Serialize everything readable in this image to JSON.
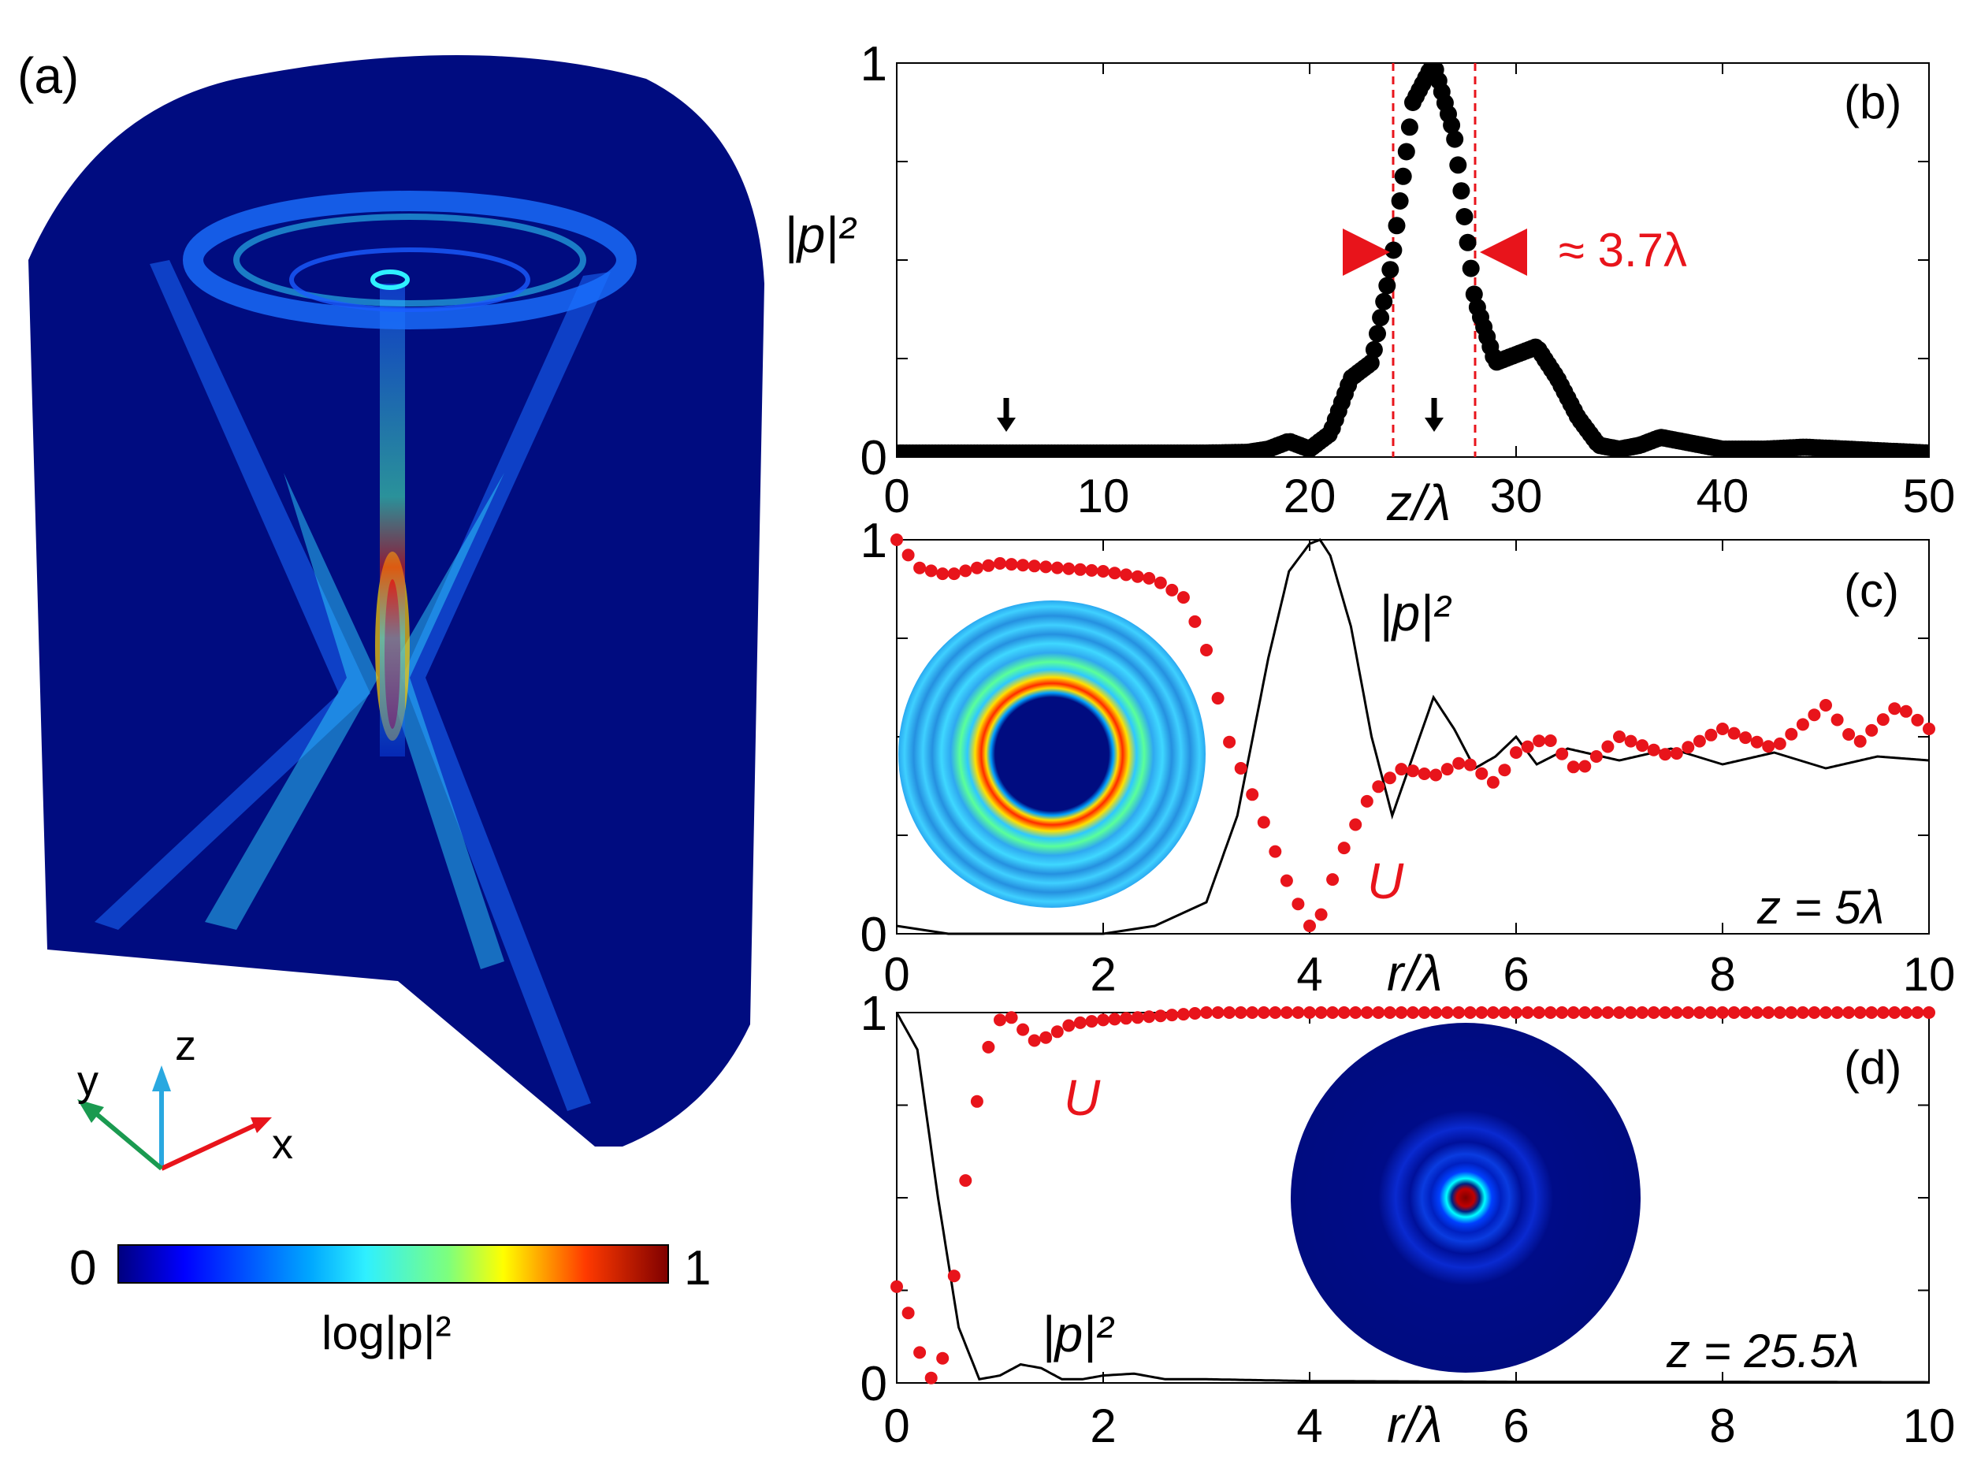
{
  "colors": {
    "red": "#e8141b",
    "black": "#000000",
    "deep_blue": "#000c80",
    "mid_blue": "#1a5cff",
    "cyan": "#22d4ff"
  },
  "panel_a": {
    "label": "(a)",
    "axis_x": "x",
    "axis_y": "y",
    "axis_z": "z",
    "colorbar": {
      "min_label": "0",
      "max_label": "1",
      "caption": "log|p|²"
    }
  },
  "chart_data": [
    {
      "type": "line",
      "panel": "(b)",
      "xlabel": "z/λ",
      "ylabel": "|p|²",
      "xlim": [
        0,
        50
      ],
      "ylim": [
        0,
        1
      ],
      "xticks": [
        "0",
        "10",
        "20",
        "30",
        "40",
        "50"
      ],
      "yticks": [
        "0",
        "1"
      ],
      "annotation": "≈ 3.7λ",
      "arrows_at_z": [
        5,
        25.5
      ],
      "width_markers_z": [
        23.8,
        27.5
      ],
      "series": [
        {
          "name": "|p|²",
          "style": "thick-dots",
          "color": "#000000",
          "x": [
            0,
            5,
            10,
            15,
            17,
            18,
            19,
            20,
            21,
            22,
            23,
            24,
            25,
            26,
            27,
            28,
            29,
            30,
            31,
            32,
            33,
            34,
            35,
            36,
            37,
            38,
            40,
            42,
            44,
            46,
            48,
            50
          ],
          "y": [
            0.01,
            0.01,
            0.01,
            0.01,
            0.012,
            0.02,
            0.04,
            0.02,
            0.06,
            0.2,
            0.24,
            0.5,
            0.9,
            1.0,
            0.82,
            0.4,
            0.24,
            0.26,
            0.28,
            0.2,
            0.1,
            0.03,
            0.02,
            0.03,
            0.05,
            0.04,
            0.02,
            0.02,
            0.025,
            0.02,
            0.015,
            0.01
          ]
        }
      ]
    },
    {
      "type": "line",
      "panel": "(c)",
      "xlabel": "r/λ",
      "xlim": [
        0,
        10
      ],
      "ylim": [
        0,
        1
      ],
      "xticks": [
        "0",
        "2",
        "4",
        "6",
        "8",
        "10"
      ],
      "yticks": [
        "0",
        "1"
      ],
      "annotation": "z = 5λ",
      "series": [
        {
          "name": "|p|²",
          "style": "thin-line",
          "color": "#000000",
          "x": [
            0,
            0.5,
            1,
            1.5,
            2,
            2.5,
            3,
            3.3,
            3.6,
            3.8,
            4,
            4.1,
            4.2,
            4.4,
            4.6,
            4.8,
            5,
            5.2,
            5.4,
            5.6,
            5.8,
            6,
            6.2,
            6.5,
            7,
            7.5,
            8,
            8.5,
            9,
            9.5,
            10
          ],
          "y": [
            0.02,
            0.0,
            0.0,
            0.0,
            0.0,
            0.02,
            0.08,
            0.3,
            0.7,
            0.92,
            0.99,
            1.0,
            0.96,
            0.78,
            0.5,
            0.3,
            0.45,
            0.6,
            0.52,
            0.42,
            0.45,
            0.5,
            0.43,
            0.47,
            0.44,
            0.47,
            0.43,
            0.46,
            0.42,
            0.45,
            0.44
          ]
        },
        {
          "name": "U",
          "style": "red-dots",
          "color": "#e8141b",
          "x": [
            0,
            0.2,
            0.5,
            0.8,
            1,
            1.5,
            2,
            2.5,
            2.8,
            3,
            3.2,
            3.5,
            3.8,
            4,
            4.1,
            4.3,
            4.6,
            4.9,
            5.2,
            5.5,
            5.8,
            6,
            6.3,
            6.6,
            7,
            7.5,
            8,
            8.5,
            9,
            9.3,
            9.7,
            10
          ],
          "y": [
            1.0,
            0.93,
            0.91,
            0.93,
            0.94,
            0.93,
            0.92,
            0.9,
            0.85,
            0.72,
            0.5,
            0.32,
            0.12,
            0.02,
            0.04,
            0.2,
            0.36,
            0.42,
            0.4,
            0.44,
            0.38,
            0.46,
            0.5,
            0.41,
            0.5,
            0.45,
            0.52,
            0.47,
            0.58,
            0.48,
            0.58,
            0.52
          ]
        }
      ]
    },
    {
      "type": "line",
      "panel": "(d)",
      "xlabel": "r/λ",
      "xlim": [
        0,
        10
      ],
      "ylim": [
        0,
        1
      ],
      "xticks": [
        "0",
        "2",
        "4",
        "6",
        "8",
        "10"
      ],
      "yticks": [
        "0",
        "1"
      ],
      "annotation": "z = 25.5λ",
      "series": [
        {
          "name": "|p|²",
          "style": "thin-line",
          "color": "#000000",
          "x": [
            0,
            0.2,
            0.4,
            0.6,
            0.8,
            1,
            1.2,
            1.4,
            1.6,
            1.8,
            2,
            2.3,
            2.6,
            3,
            4,
            6,
            8,
            10
          ],
          "y": [
            1.0,
            0.9,
            0.5,
            0.15,
            0.01,
            0.02,
            0.05,
            0.04,
            0.01,
            0.01,
            0.02,
            0.025,
            0.01,
            0.01,
            0.005,
            0.003,
            0.003,
            0.002
          ]
        },
        {
          "name": "U",
          "style": "red-dots",
          "color": "#e8141b",
          "x": [
            0,
            0.1,
            0.2,
            0.3,
            0.4,
            0.5,
            0.6,
            0.7,
            0.8,
            0.9,
            1,
            1.1,
            1.2,
            1.35,
            1.5,
            1.7,
            2,
            2.5,
            3,
            4,
            5,
            6,
            8,
            10
          ],
          "y": [
            0.26,
            0.2,
            0.1,
            0.02,
            0.0,
            0.15,
            0.4,
            0.62,
            0.8,
            0.92,
            0.98,
            0.99,
            0.96,
            0.92,
            0.94,
            0.97,
            0.98,
            0.99,
            1.0,
            1.0,
            1.0,
            1.0,
            1.0,
            1.0
          ]
        }
      ]
    }
  ],
  "labels": {
    "b_panel": "(b)",
    "c_panel": "(c)",
    "d_panel": "(d)",
    "pabs": "|p|²",
    "U": "U",
    "zlam": "z/λ",
    "rlam": "r/λ",
    "width": "≈ 3.7λ",
    "z5": "z = 5λ",
    "z255": "z = 25.5λ"
  }
}
